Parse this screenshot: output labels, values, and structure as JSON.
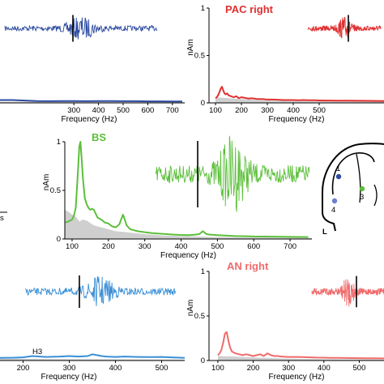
{
  "chart_data": [
    {
      "id": "top-left",
      "type": "line",
      "title": "",
      "color": "#2b4aa0",
      "xlabel": "Frequency (Hz)",
      "xlim": [
        0,
        750
      ],
      "xticks": [
        300,
        400,
        500,
        600,
        700
      ],
      "ylim": [
        0,
        1
      ],
      "yticks": [],
      "ylabel": "",
      "noise": [
        [
          0,
          0.01
        ],
        [
          100,
          0.012
        ],
        [
          200,
          0.012
        ],
        [
          300,
          0.01
        ],
        [
          400,
          0.01
        ],
        [
          500,
          0.008
        ],
        [
          600,
          0.008
        ],
        [
          700,
          0.007
        ],
        [
          750,
          0.007
        ]
      ],
      "series": [
        {
          "x": [
            0,
            50,
            100,
            150,
            200,
            250,
            300,
            350,
            400,
            450,
            500,
            550,
            600,
            650,
            700,
            740
          ],
          "values": [
            0.03,
            0.03,
            0.025,
            0.02,
            0.018,
            0.02,
            0.02,
            0.018,
            0.02,
            0.02,
            0.018,
            0.018,
            0.016,
            0.016,
            0.015,
            0.015
          ]
        }
      ]
    },
    {
      "id": "top-right",
      "type": "line",
      "title": "PAC right",
      "color": "#e03030",
      "xlabel": "Frequency (Hz)",
      "xlim": [
        75,
        750
      ],
      "xticks": [
        100,
        200,
        300,
        400,
        500
      ],
      "ylim": [
        0,
        1
      ],
      "yticks": [
        0,
        0.5,
        1
      ],
      "ylabel": "nAm",
      "noise": [
        [
          100,
          0.06
        ],
        [
          150,
          0.05
        ],
        [
          200,
          0.04
        ],
        [
          300,
          0.025
        ],
        [
          400,
          0.02
        ],
        [
          500,
          0.015
        ],
        [
          600,
          0.015
        ],
        [
          750,
          0.015
        ]
      ],
      "series": [
        {
          "x": [
            100,
            105,
            110,
            115,
            120,
            125,
            130,
            135,
            140,
            145,
            150,
            160,
            170,
            180,
            190,
            200,
            210,
            220,
            230,
            240,
            250,
            260,
            280,
            300,
            320,
            340,
            360,
            380,
            400,
            420,
            440,
            460,
            480,
            500,
            520,
            540,
            560,
            600,
            650,
            700,
            750
          ],
          "values": [
            0.05,
            0.06,
            0.08,
            0.11,
            0.15,
            0.17,
            0.13,
            0.1,
            0.09,
            0.1,
            0.08,
            0.07,
            0.06,
            0.07,
            0.05,
            0.06,
            0.055,
            0.05,
            0.045,
            0.05,
            0.045,
            0.04,
            0.04,
            0.035,
            0.035,
            0.033,
            0.03,
            0.03,
            0.03,
            0.028,
            0.03,
            0.028,
            0.027,
            0.026,
            0.025,
            0.025,
            0.024,
            0.023,
            0.022,
            0.021,
            0.02
          ]
        }
      ]
    },
    {
      "id": "middle",
      "type": "line",
      "title": "BS",
      "color": "#5cbf3b",
      "xlabel": "Frequency (Hz)",
      "xlim": [
        80,
        760
      ],
      "xticks": [
        100,
        200,
        300,
        400,
        500,
        600,
        700
      ],
      "ylim": [
        0,
        1
      ],
      "yticks": [
        0,
        0.5,
        1
      ],
      "ylabel": "nAm",
      "noise": [
        [
          80,
          0.3
        ],
        [
          90,
          0.28
        ],
        [
          100,
          0.25
        ],
        [
          110,
          0.23
        ],
        [
          120,
          0.18
        ],
        [
          130,
          0.2
        ],
        [
          140,
          0.19
        ],
        [
          160,
          0.14
        ],
        [
          180,
          0.12
        ],
        [
          200,
          0.1
        ],
        [
          220,
          0.08
        ],
        [
          250,
          0.07
        ],
        [
          300,
          0.05
        ],
        [
          350,
          0.035
        ],
        [
          400,
          0.03
        ],
        [
          450,
          0.025
        ],
        [
          500,
          0.02
        ],
        [
          600,
          0.015
        ],
        [
          700,
          0.012
        ],
        [
          760,
          0.01
        ]
      ],
      "series": [
        {
          "x": [
            82,
            90,
            100,
            105,
            110,
            115,
            120,
            123,
            126,
            130,
            135,
            140,
            145,
            150,
            155,
            160,
            170,
            180,
            190,
            200,
            210,
            220,
            230,
            235,
            240,
            245,
            250,
            260,
            270,
            280,
            300,
            320,
            340,
            360,
            380,
            400,
            420,
            440,
            450,
            460,
            465,
            470,
            480,
            500,
            520,
            550,
            580,
            600,
            650,
            700,
            750
          ],
          "values": [
            0.17,
            0.18,
            0.2,
            0.24,
            0.32,
            0.62,
            0.95,
            1.0,
            0.85,
            0.62,
            0.42,
            0.36,
            0.32,
            0.3,
            0.31,
            0.3,
            0.22,
            0.2,
            0.17,
            0.16,
            0.13,
            0.12,
            0.15,
            0.2,
            0.25,
            0.2,
            0.14,
            0.1,
            0.09,
            0.08,
            0.07,
            0.06,
            0.055,
            0.05,
            0.045,
            0.042,
            0.04,
            0.045,
            0.05,
            0.08,
            0.065,
            0.05,
            0.045,
            0.04,
            0.035,
            0.03,
            0.028,
            0.026,
            0.024,
            0.022,
            0.02
          ]
        }
      ]
    },
    {
      "id": "bottom-left",
      "type": "line",
      "title": "",
      "color": "#3a8fd6",
      "xlabel": "Frequency (Hz)",
      "xlim": [
        150,
        550
      ],
      "xticks": [
        200,
        300,
        400,
        500
      ],
      "ylim": [
        0,
        1
      ],
      "yticks": [],
      "ylabel": "",
      "noise": [
        [
          150,
          0.02
        ],
        [
          300,
          0.015
        ],
        [
          550,
          0.01
        ]
      ],
      "series": [
        {
          "x": [
            150,
            180,
            200,
            220,
            250,
            280,
            300,
            320,
            340,
            350,
            360,
            370,
            380,
            400,
            420,
            450,
            480,
            500,
            520,
            550
          ],
          "values": [
            0.03,
            0.032,
            0.035,
            0.05,
            0.04,
            0.045,
            0.05,
            0.045,
            0.05,
            0.07,
            0.06,
            0.05,
            0.045,
            0.04,
            0.045,
            0.04,
            0.038,
            0.04,
            0.035,
            0.03
          ]
        }
      ]
    },
    {
      "id": "bottom-right",
      "type": "line",
      "title": "AN right",
      "color": "#ef6b6b",
      "xlabel": "Frequency (Hz)",
      "xlim": [
        75,
        570
      ],
      "xticks": [
        100,
        200,
        300,
        400,
        500
      ],
      "ylim": [
        0,
        1
      ],
      "yticks": [
        0,
        0.5,
        1
      ],
      "ylabel": "nAm",
      "noise": [
        [
          100,
          0.05
        ],
        [
          150,
          0.045
        ],
        [
          200,
          0.035
        ],
        [
          300,
          0.02
        ],
        [
          400,
          0.015
        ],
        [
          570,
          0.012
        ]
      ],
      "series": [
        {
          "x": [
            100,
            105,
            110,
            115,
            120,
            125,
            130,
            135,
            140,
            150,
            160,
            170,
            180,
            190,
            200,
            210,
            220,
            230,
            240,
            250,
            260,
            270,
            280,
            300,
            320,
            340,
            360,
            380,
            400,
            420,
            440,
            460,
            480,
            500,
            520,
            540,
            570
          ],
          "values": [
            0.06,
            0.08,
            0.12,
            0.2,
            0.3,
            0.32,
            0.22,
            0.14,
            0.1,
            0.08,
            0.07,
            0.06,
            0.07,
            0.06,
            0.05,
            0.06,
            0.07,
            0.05,
            0.08,
            0.06,
            0.05,
            0.05,
            0.045,
            0.04,
            0.04,
            0.038,
            0.035,
            0.033,
            0.032,
            0.03,
            0.03,
            0.028,
            0.027,
            0.026,
            0.025,
            0.025,
            0.024
          ]
        }
      ]
    }
  ],
  "annotations": {
    "h3": "H3",
    "s_label": "s",
    "head_labels": [
      "1",
      "3",
      "4"
    ],
    "head_side": "L",
    "dot_colors": [
      "#2b4aa0",
      "#5cbf3b",
      "#6f7fd0"
    ]
  }
}
